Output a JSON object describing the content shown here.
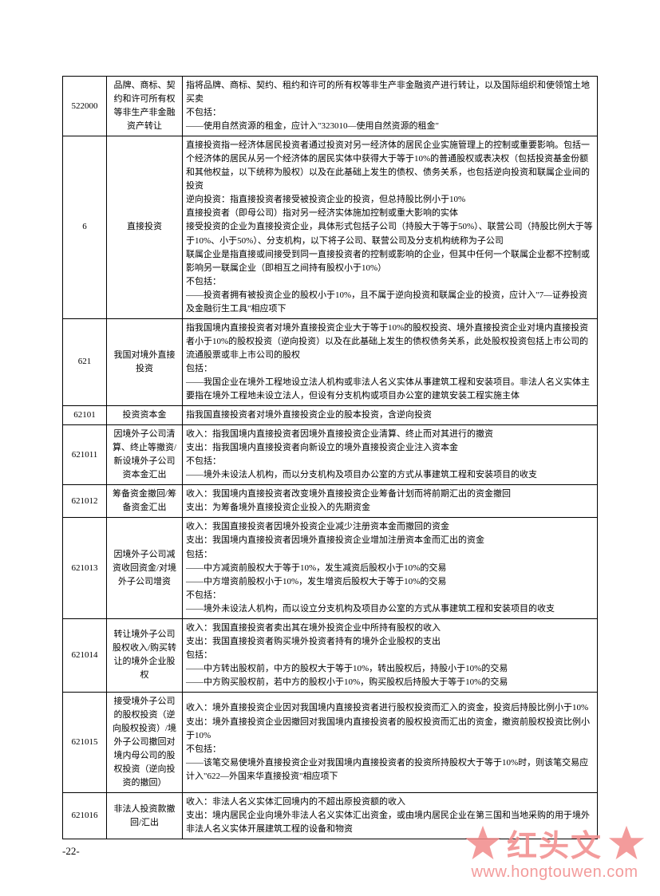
{
  "table": {
    "rows": [
      {
        "code": "522000",
        "name": "品牌、商标、契约和许可所有权等非生产非金融资产转让",
        "desc": "指将品牌、商标、契约、租约和许可的所有权等非生产非金融资产进行转让，以及国际组织和使领馆土地买卖\n不包括：\n——使用自然资源的租金，应计入\"323010—使用自然资源的租金\""
      },
      {
        "code": "6",
        "name": "直接投资",
        "desc": "直接投资指一经济体居民投资者通过投资对另一经济体的居民企业实施管理上的控制或重要影响。包括一个经济体的居民从另一个经济体的居民实体中获得大于等于10%的普通股权或表决权（包括投资基金份额和其他权益，以下统称为股权）以及在此基础上发生的债权、债务关系，也包括逆向投资和联属企业间的投资\n逆向投资：指直接投资者接受被投资企业的投资，但总持股比例小于10%\n直接投资者（即母公司）指对另一经济实体施加控制或重大影响的实体\n接受投资的企业为直接投资企业，具体形式包括子公司（持股大于等于50%）、联营公司（持股比例大于等于10%、小于50%）、分支机构，以下将子公司、联营公司及分支机构统称为子公司\n联属企业是指直接或间接受到同一直接投资者的控制或影响的企业，但其中任何一个联属企业都不控制或影响另一联属企业（即相互之间持有股权小于10%）\n不包括：\n——投资者拥有被投资企业的股权小于10%，且不属于逆向投资和联属企业的投资，应计入\"7—证券投资及金融衍生工具\"相应项下"
      },
      {
        "code": "621",
        "name": "我国对境外直接投资",
        "desc": "指我国境内直接投资者对境外直接投资企业大于等于10%的股权投资、境外直接投资企业对境内直接投资者小于10%的股权投资（逆向投资）以及在此基础上发生的债权债务关系，此处股权投资包括上市公司的流通股票或非上市公司的股权\n包括：\n——我国企业在境外工程地设立法人机构或非法人名义实体从事建筑工程和安装项目。非法人名义实体主要指在境外工程地未设立法人，但设有分支机构或项目办公室的建筑安装工程实施主体"
      },
      {
        "code": "62101",
        "name": "投资资本金",
        "desc": "指我国直接投资者对境外直接投资企业的股本投资，含逆向投资"
      },
      {
        "code": "621011",
        "name": "因境外子公司清算、终止等撤资/新设境外子公司资本金汇出",
        "desc": "收入：指我国境内直接投资者因境外直接投资企业清算、终止而对其进行的撤资\n支出：指我国境内直接投资者向新设立的境外直接投资企业注入资本金\n不包括：\n——境外未设法人机构，而以分支机构及项目办公室的方式从事建筑工程和安装项目的收支"
      },
      {
        "code": "621012",
        "name": "筹备资金撤回/筹备资金汇出",
        "desc": "收入：我国境内直接投资者改变境外直接投资企业筹备计划而将前期汇出的资金撤回\n支出：为筹备境外直接投资企业投入的先期资金"
      },
      {
        "code": "621013",
        "name": "因境外子公司减资收回资金/对境外子公司增资",
        "desc": "收入：我国直接投资者因境外投资企业减少注册资本金而撤回的资金\n支出：我国境内直接投资者因境外直接投资企业增加注册资本金而汇出的资金\n包括：\n——中方减资前股权大于等于10%，发生减资后股权小于10%的交易\n——中方增资前股权小于10%，发生增资后股权大于等于10%的交易\n不包括：\n——境外未设法人机构，而以设立分支机构及项目办公室的方式从事建筑工程和安装项目的收支"
      },
      {
        "code": "621014",
        "name": "转让境外子公司股权收入/购买转让的境外企业股权",
        "desc": "收入：我国直接投资者卖出其在境外投资企业中所持有股权的收入\n支出：我国直接投资者购买境外投资者持有的境外企业股权的支出\n包括：\n——中方转出股权前，中方的股权大于等于10%，转出股权后，持股小于10%的交易\n——中方购买股权前，若中方的股权小于10%，购买股权后持股大于等于10%的交易"
      },
      {
        "code": "621015",
        "name": "接受境外子公司的股权投资（逆向股权投资）/境外子公司撤回对境内母公司的股权投资（逆向投资的撤回）",
        "desc": "收入：境外直接投资企业因对我国境内直接投资者进行股权投资而汇入的资金，投资后持股比例小于10%\n支出：境外直接投资企业因撤回对我国境内直接投资者的股权投资而汇出的资金，撤资前股权投资比例小于10%\n不包括：\n——该笔交易使境外直接投资企业对我国境内直接投资者的投资所持股权大于等于10%时，则该笔交易应计入\"622—外国来华直接投资\"相应项下"
      },
      {
        "code": "621016",
        "name": "非法人投资款撤回/汇出",
        "desc": "收入：非法人名义实体汇回境内的不超出原投资额的收入\n支出：境内居民企业向境外非法人名义实体汇出资金，或由境内居民企业在第三国和当地采购的用于境外非法人名义实体开展建筑工程的设备和物资"
      }
    ]
  },
  "pageNumber": "-22-",
  "watermark": {
    "text": "红头文",
    "url": "www.hongtouwen.com"
  }
}
